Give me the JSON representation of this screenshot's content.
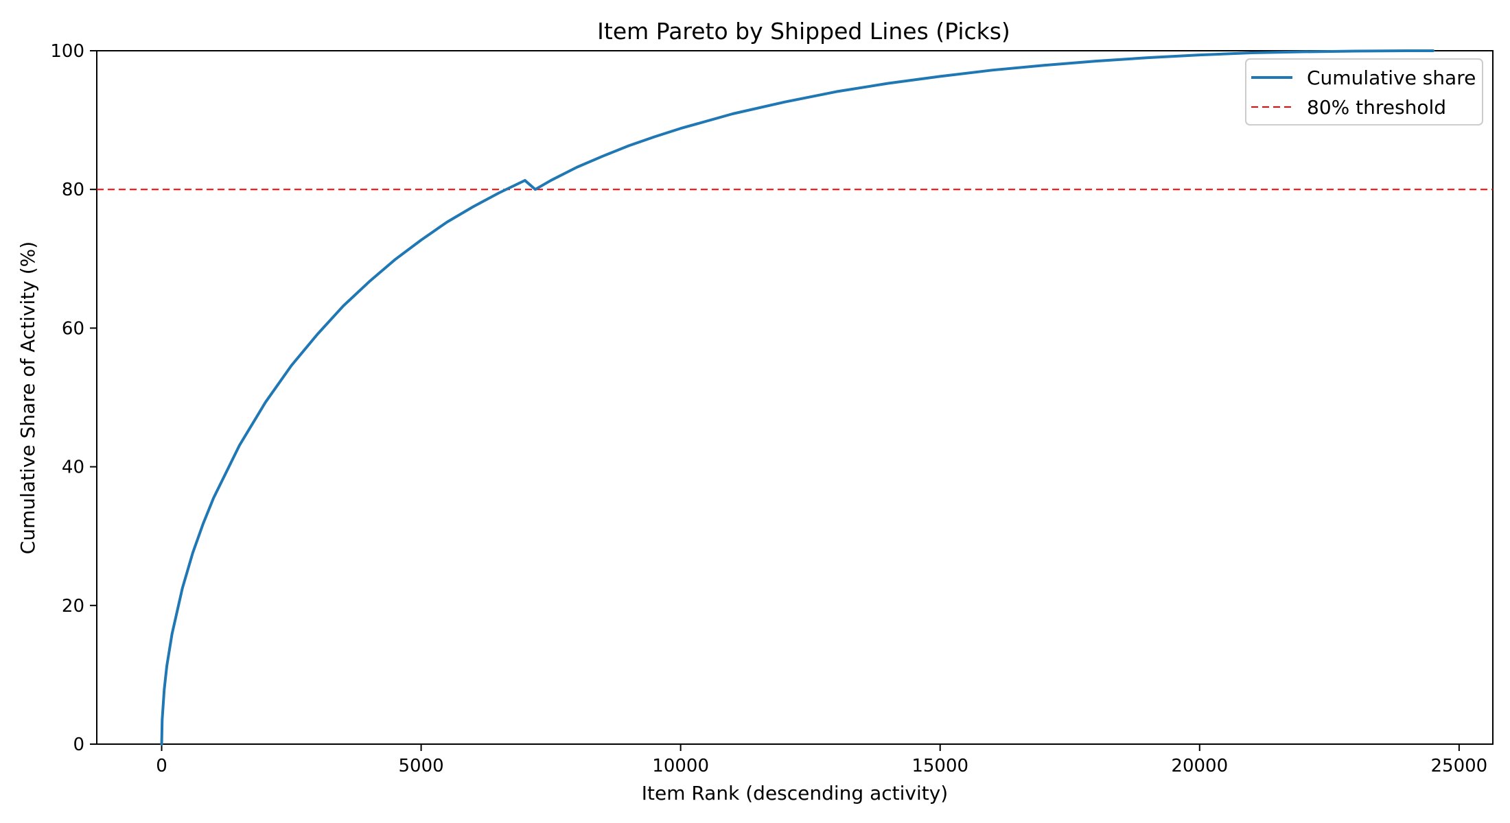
{
  "chart_data": {
    "type": "line",
    "title": "Item Pareto by Shipped Lines (Picks)",
    "xlabel": "Item Rank (descending activity)",
    "ylabel": "Cumulative Share of Activity (%)",
    "xlim": [
      -1250,
      25650
    ],
    "ylim": [
      0,
      100
    ],
    "x_ticks": [
      0,
      5000,
      10000,
      15000,
      20000,
      25000
    ],
    "y_ticks": [
      0,
      20,
      40,
      60,
      80,
      100
    ],
    "x_tick_labels": [
      "0",
      "5000",
      "10000",
      "15000",
      "20000",
      "25000"
    ],
    "y_tick_labels": [
      "0",
      "20",
      "40",
      "60",
      "80",
      "100"
    ],
    "grid": false,
    "legend_position": "top-right",
    "series": [
      {
        "name": "Cumulative share",
        "color": "#1f77b4",
        "style": "solid",
        "x": [
          0,
          10,
          50,
          100,
          200,
          400,
          600,
          800,
          1000,
          1500,
          2000,
          2500,
          3000,
          3500,
          4000,
          4500,
          5000,
          5500,
          6000,
          6500,
          7000,
          7200,
          7500,
          8000,
          8500,
          9000,
          9500,
          10000,
          11000,
          12000,
          13000,
          14000,
          15000,
          16000,
          17000,
          18000,
          19000,
          20000,
          21000,
          22000,
          23000,
          24000,
          24500
        ],
        "y": [
          0,
          3.5,
          7.9,
          11.3,
          15.9,
          22.5,
          27.6,
          31.8,
          35.5,
          43.1,
          49.3,
          54.6,
          59.1,
          63.2,
          66.7,
          69.9,
          72.7,
          75.3,
          77.5,
          79.5,
          81.3,
          80.0,
          81.3,
          83.2,
          84.8,
          86.3,
          87.6,
          88.8,
          90.9,
          92.6,
          94.1,
          95.3,
          96.3,
          97.2,
          97.9,
          98.5,
          99.0,
          99.4,
          99.7,
          99.85,
          99.95,
          100.0,
          100.0
        ]
      },
      {
        "name": "80% threshold",
        "color": "#ff0000",
        "style": "dashed",
        "y_constant": 80
      }
    ]
  }
}
